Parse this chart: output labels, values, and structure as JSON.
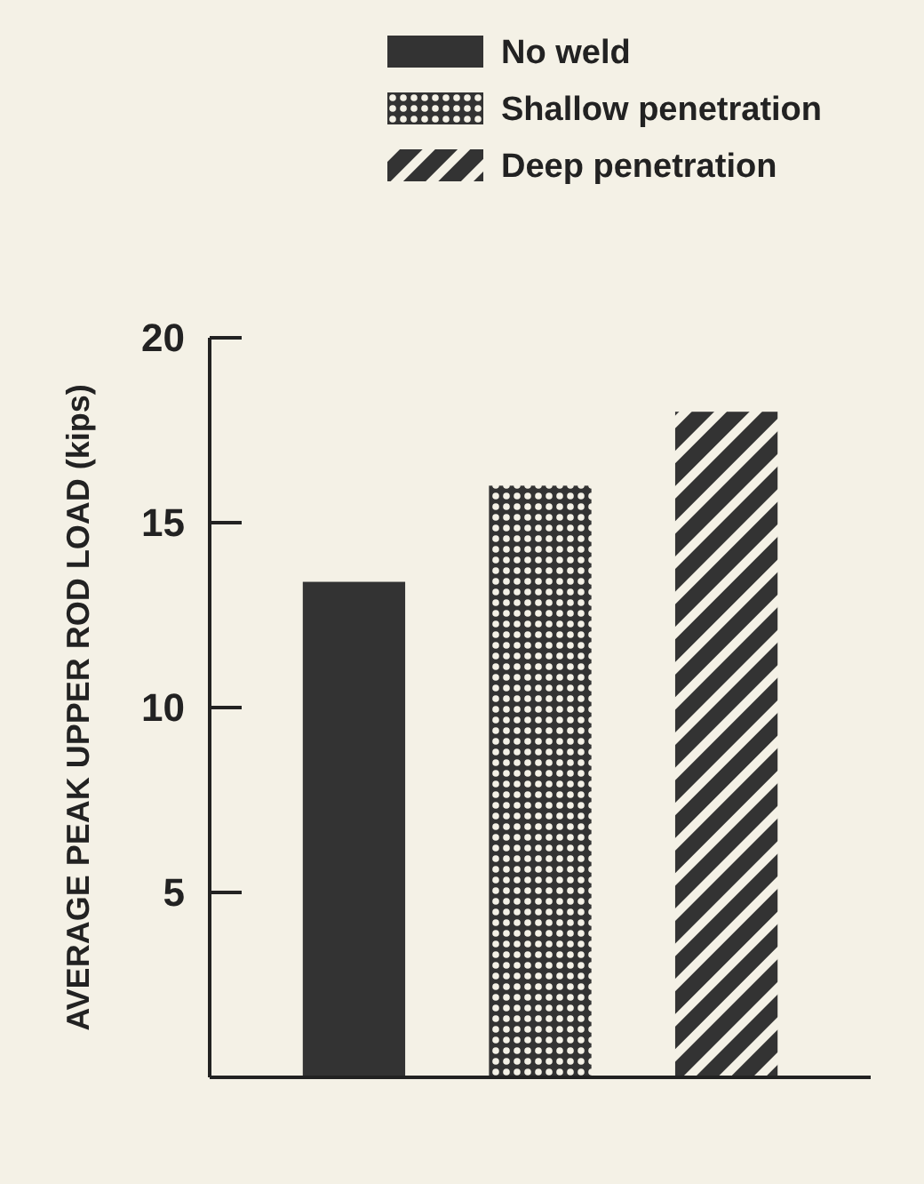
{
  "chart_data": {
    "type": "bar",
    "ylabel": "AVERAGE PEAK UPPER ROD LOAD (kips)",
    "categories": [
      null,
      null,
      null
    ],
    "series": [
      {
        "name": "No weld",
        "color": "#333333",
        "values": [
          13.4,
          null,
          null
        ]
      },
      {
        "name": "Shallow penetration",
        "color": "#333333",
        "values": [
          null,
          16.0,
          null
        ]
      },
      {
        "name": "Deep penetration",
        "color": "#333333",
        "values": [
          null,
          null,
          18.0
        ]
      }
    ],
    "ylim": [
      0,
      20
    ],
    "yticks": [
      5,
      10,
      15,
      20
    ],
    "legend": "top",
    "grid": false
  }
}
